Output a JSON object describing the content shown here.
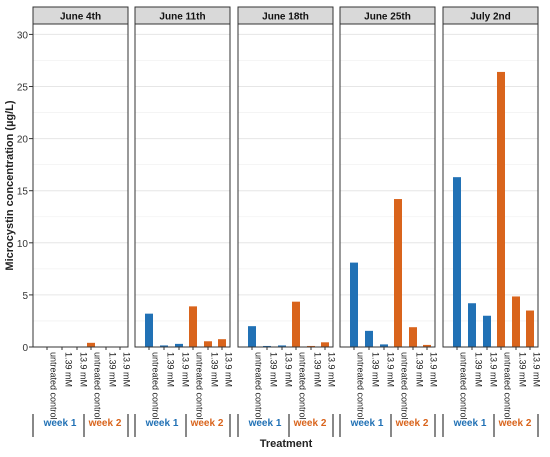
{
  "chart_data": {
    "type": "bar",
    "ylabel": "Microcystin concentration (µg/L)",
    "xlabel": "Treatment",
    "ylim": [
      0,
      31
    ],
    "y_ticks": [
      0,
      5,
      10,
      15,
      20,
      25,
      30
    ],
    "grid": true,
    "categories": [
      "untreated control",
      "1.39 mM",
      "13.9 mM",
      "untreated control",
      "1.39 mM",
      "13.9 mM"
    ],
    "groups": [
      {
        "label": "week 1",
        "color": "#2171b5"
      },
      {
        "label": "week 2",
        "color": "#d9641c"
      }
    ],
    "panels": [
      {
        "title": "June 4th",
        "values": [
          0,
          0,
          0,
          0.4,
          0,
          0
        ]
      },
      {
        "title": "June 11th",
        "values": [
          3.2,
          0.15,
          0.3,
          3.9,
          0.55,
          0.75
        ]
      },
      {
        "title": "June 18th",
        "values": [
          2.0,
          0.1,
          0.15,
          4.35,
          0.1,
          0.45
        ]
      },
      {
        "title": "June 25th",
        "values": [
          8.1,
          1.55,
          0.25,
          14.2,
          1.9,
          0.2
        ]
      },
      {
        "title": "July 2nd",
        "values": [
          16.3,
          4.2,
          3.0,
          26.4,
          4.85,
          3.5
        ]
      }
    ]
  }
}
